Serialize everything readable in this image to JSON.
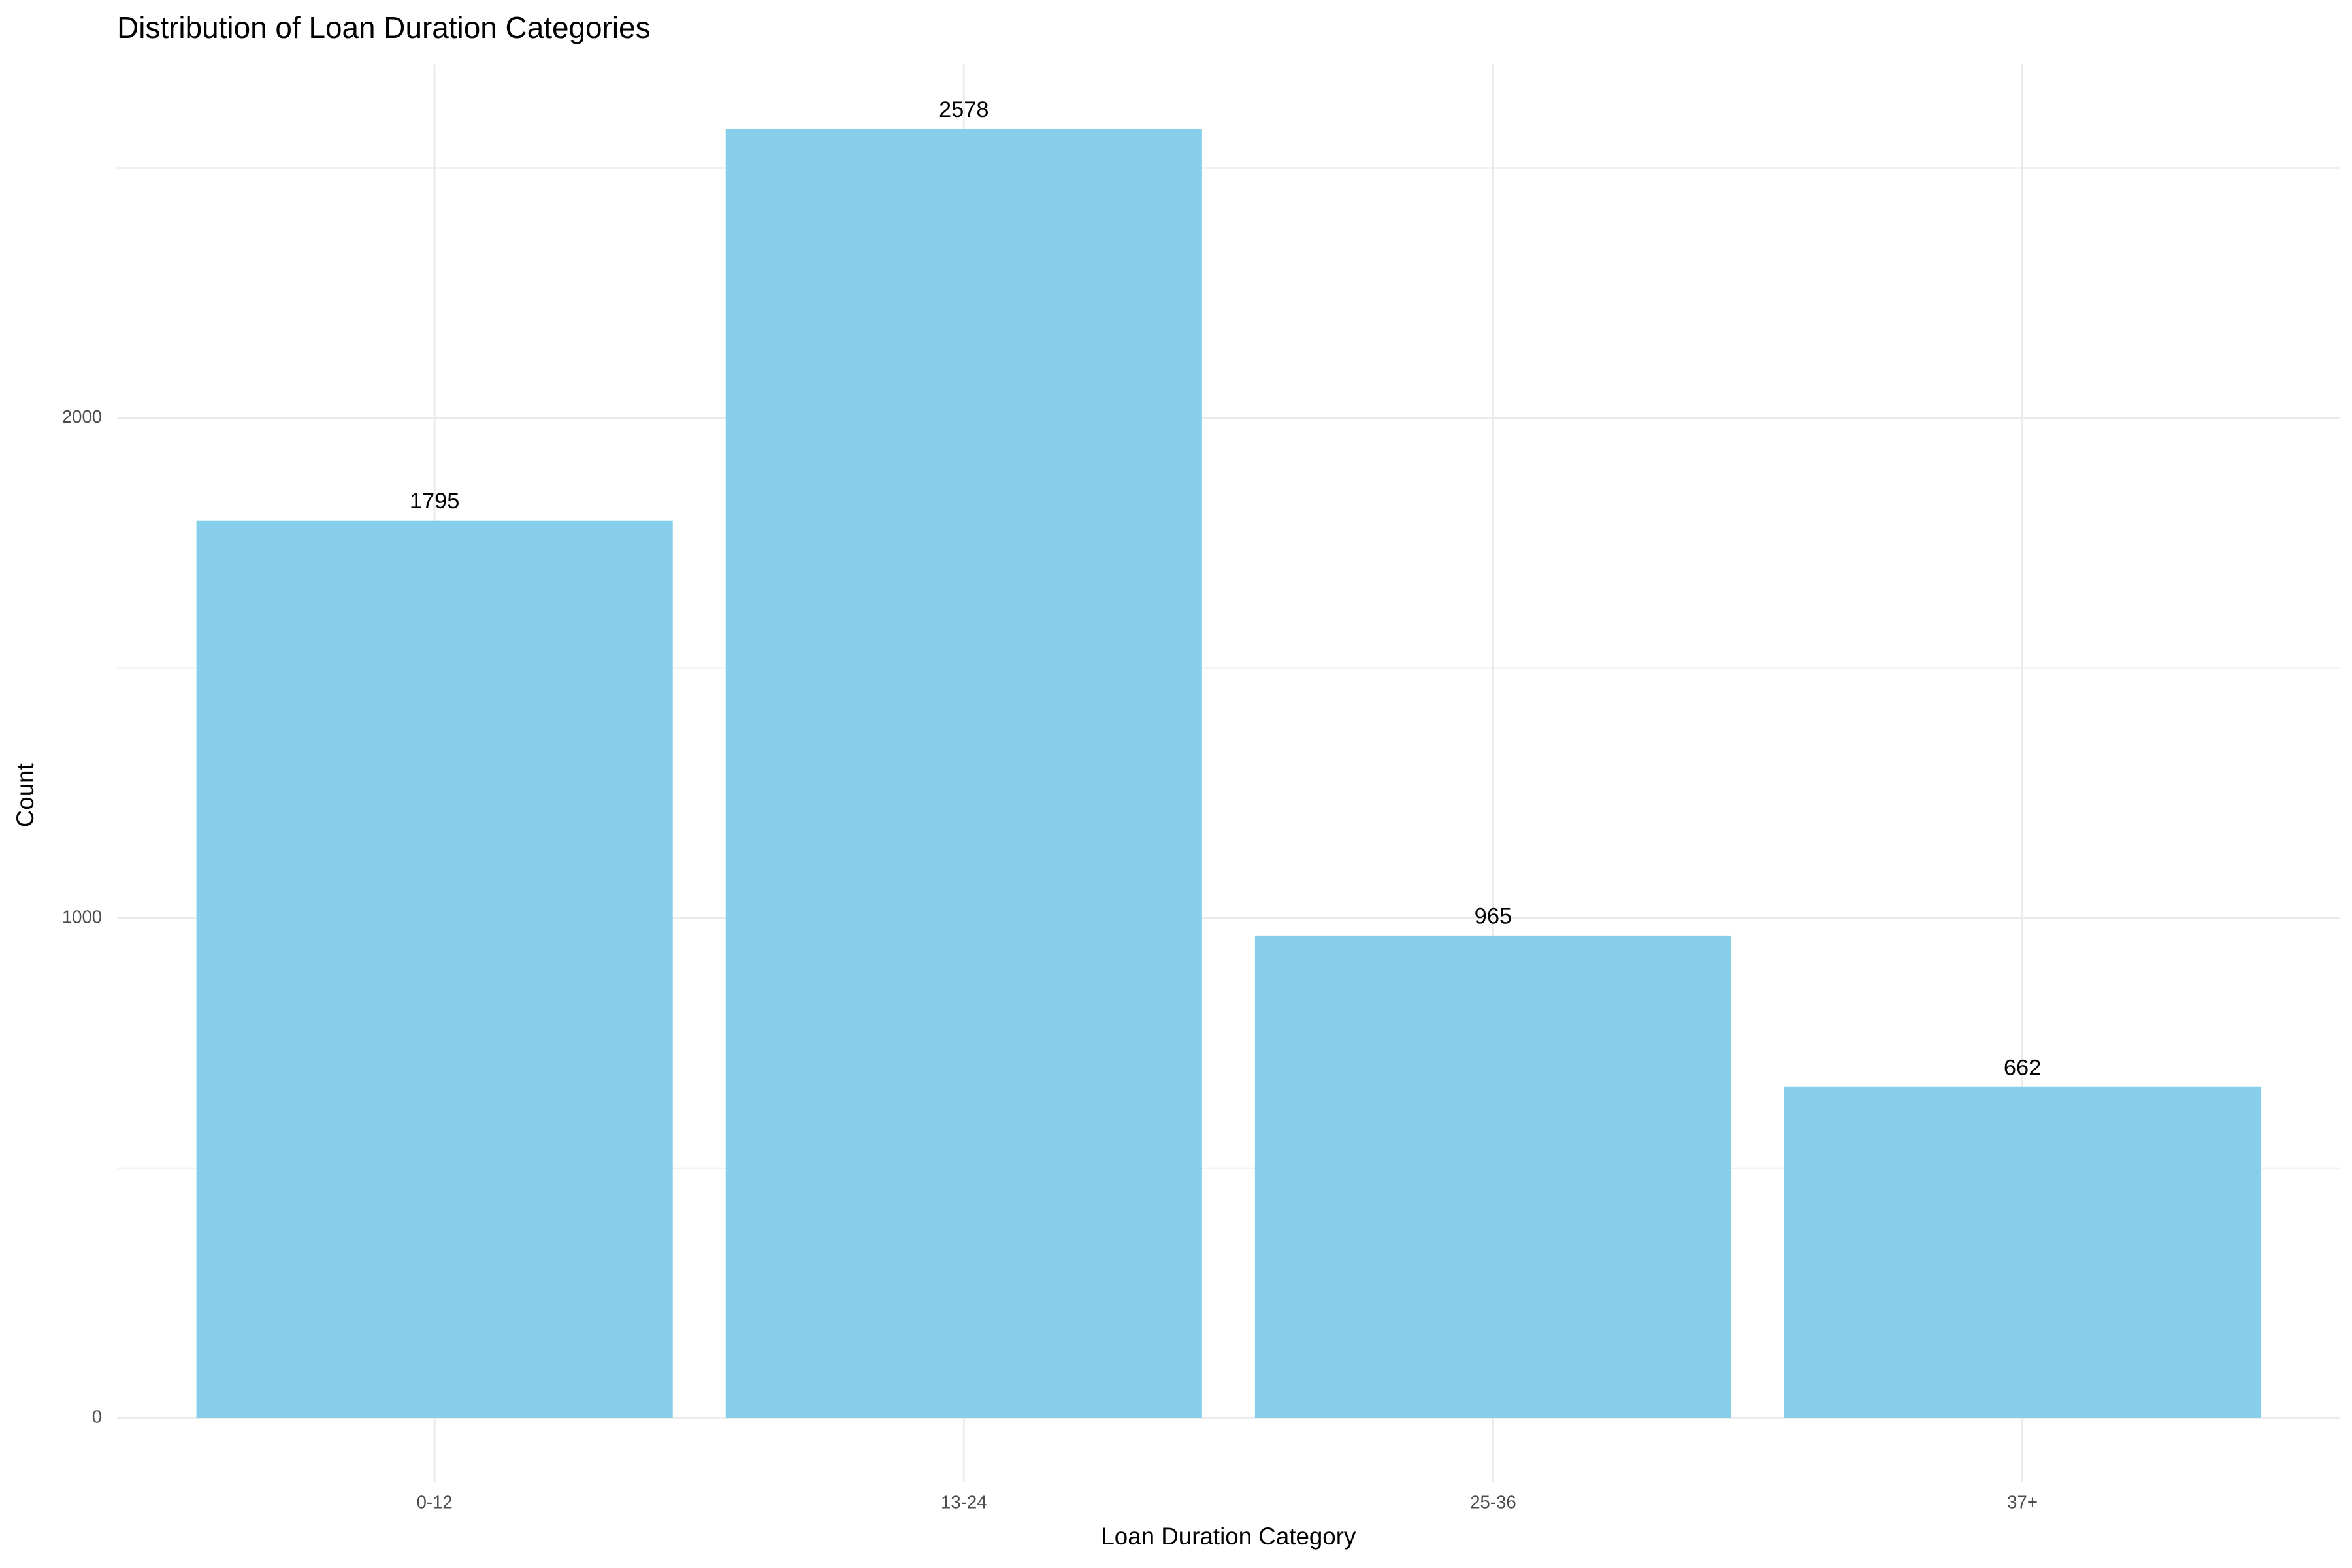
{
  "chart_data": {
    "type": "bar",
    "title": "Distribution of Loan Duration Categories",
    "x_label": "Loan Duration Category",
    "y_label": "Count",
    "categories": [
      "0-12",
      "13-24",
      "25-36",
      "37+"
    ],
    "values": [
      1795,
      2578,
      965,
      662
    ],
    "color": "#87ceeb",
    "ylim": [
      -129,
      2707
    ],
    "yticks": [
      0,
      1000,
      2000
    ],
    "y_minor_grid": [
      500,
      1500,
      2500
    ],
    "grid": true
  }
}
